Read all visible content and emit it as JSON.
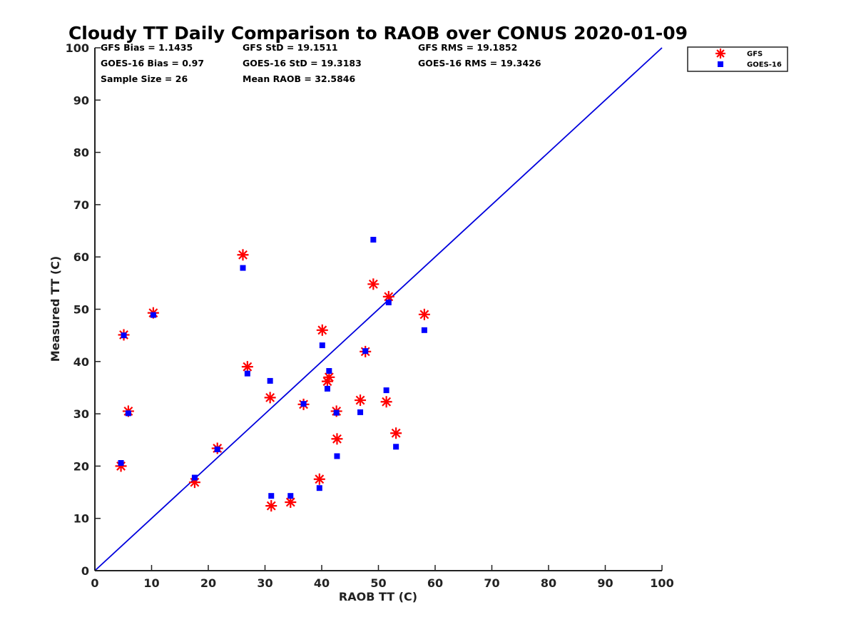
{
  "chart_data": {
    "type": "scatter",
    "title": "Cloudy TT Daily Comparison to RAOB over CONUS 2020-01-09",
    "xlabel": "RAOB TT (C)",
    "ylabel": "Measured TT (C)",
    "xlim": [
      0,
      100
    ],
    "ylim": [
      0,
      100
    ],
    "xticks": [
      "0",
      "10",
      "20",
      "30",
      "40",
      "50",
      "60",
      "70",
      "80",
      "90",
      "100"
    ],
    "yticks": [
      "0",
      "10",
      "20",
      "30",
      "40",
      "50",
      "60",
      "70",
      "80",
      "90",
      "100"
    ],
    "grid": false,
    "legend_position": "outside top-right",
    "reference_line": {
      "from": [
        0,
        0
      ],
      "to": [
        100,
        100
      ],
      "color": "#0000dd"
    },
    "stats": [
      {
        "text": "GFS Bias = 1.1435",
        "row": 0,
        "col": 0
      },
      {
        "text": "GFS StD = 19.1511",
        "row": 0,
        "col": 1
      },
      {
        "text": "GFS RMS = 19.1852",
        "row": 0,
        "col": 2
      },
      {
        "text": "GOES-16 Bias = 0.97",
        "row": 1,
        "col": 0
      },
      {
        "text": "GOES-16 StD = 19.3183",
        "row": 1,
        "col": 1
      },
      {
        "text": "GOES-16 RMS = 19.3426",
        "row": 1,
        "col": 2
      },
      {
        "text": "Sample Size = 26",
        "row": 2,
        "col": 0
      },
      {
        "text": "Mean RAOB = 32.5846",
        "row": 2,
        "col": 1
      }
    ],
    "series": [
      {
        "name": "GFS",
        "marker": "asterisk",
        "color": "#ff0000",
        "points": [
          [
            4.6,
            20.0
          ],
          [
            5.1,
            45.1
          ],
          [
            5.9,
            30.5
          ],
          [
            10.3,
            49.3
          ],
          [
            17.6,
            16.9
          ],
          [
            21.6,
            23.4
          ],
          [
            26.1,
            60.4
          ],
          [
            26.9,
            39.0
          ],
          [
            30.9,
            33.1
          ],
          [
            31.1,
            12.4
          ],
          [
            34.5,
            13.1
          ],
          [
            36.8,
            31.8
          ],
          [
            39.6,
            17.5
          ],
          [
            40.1,
            46.0
          ],
          [
            41.0,
            36.2
          ],
          [
            41.3,
            37.0
          ],
          [
            42.6,
            30.5
          ],
          [
            42.7,
            25.2
          ],
          [
            46.8,
            32.6
          ],
          [
            47.7,
            41.9
          ],
          [
            49.1,
            54.8
          ],
          [
            51.4,
            32.3
          ],
          [
            51.8,
            52.4
          ],
          [
            53.1,
            26.3
          ],
          [
            58.1,
            49.0
          ]
        ]
      },
      {
        "name": "GOES-16",
        "marker": "square",
        "color": "#0000ff",
        "points": [
          [
            4.6,
            20.6
          ],
          [
            5.1,
            45.0
          ],
          [
            5.9,
            30.1
          ],
          [
            10.3,
            48.9
          ],
          [
            17.6,
            17.8
          ],
          [
            21.6,
            23.2
          ],
          [
            26.1,
            57.9
          ],
          [
            26.9,
            37.7
          ],
          [
            30.9,
            36.3
          ],
          [
            31.1,
            14.3
          ],
          [
            34.5,
            14.3
          ],
          [
            36.8,
            31.9
          ],
          [
            39.6,
            15.8
          ],
          [
            40.1,
            43.1
          ],
          [
            41.0,
            34.8
          ],
          [
            41.3,
            38.2
          ],
          [
            42.6,
            30.2
          ],
          [
            42.7,
            21.9
          ],
          [
            46.8,
            30.3
          ],
          [
            47.7,
            42.0
          ],
          [
            49.1,
            63.3
          ],
          [
            51.4,
            34.5
          ],
          [
            51.8,
            51.3
          ],
          [
            53.1,
            23.7
          ],
          [
            58.1,
            46.0
          ]
        ]
      }
    ]
  }
}
